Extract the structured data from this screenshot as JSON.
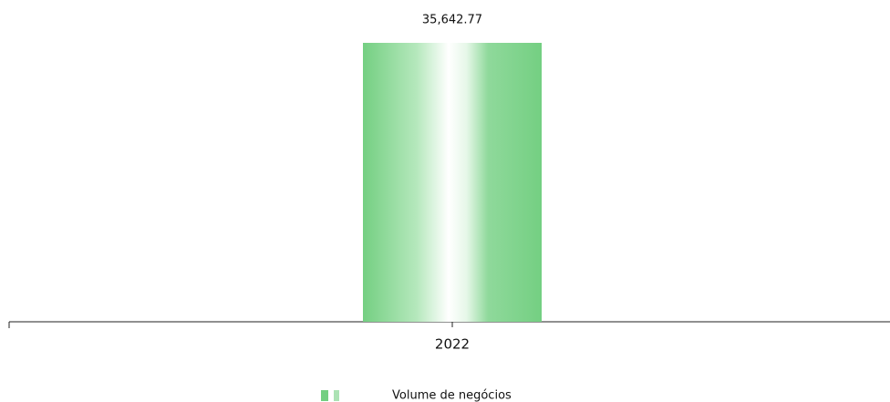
{
  "chart_data": {
    "type": "bar",
    "categories": [
      "2022"
    ],
    "series": [
      {
        "name": "Volume de negócios",
        "color": "#74cf82",
        "values": [
          35642.77
        ],
        "value_labels": [
          "35,642.77"
        ]
      }
    ],
    "legend": "bottom"
  }
}
